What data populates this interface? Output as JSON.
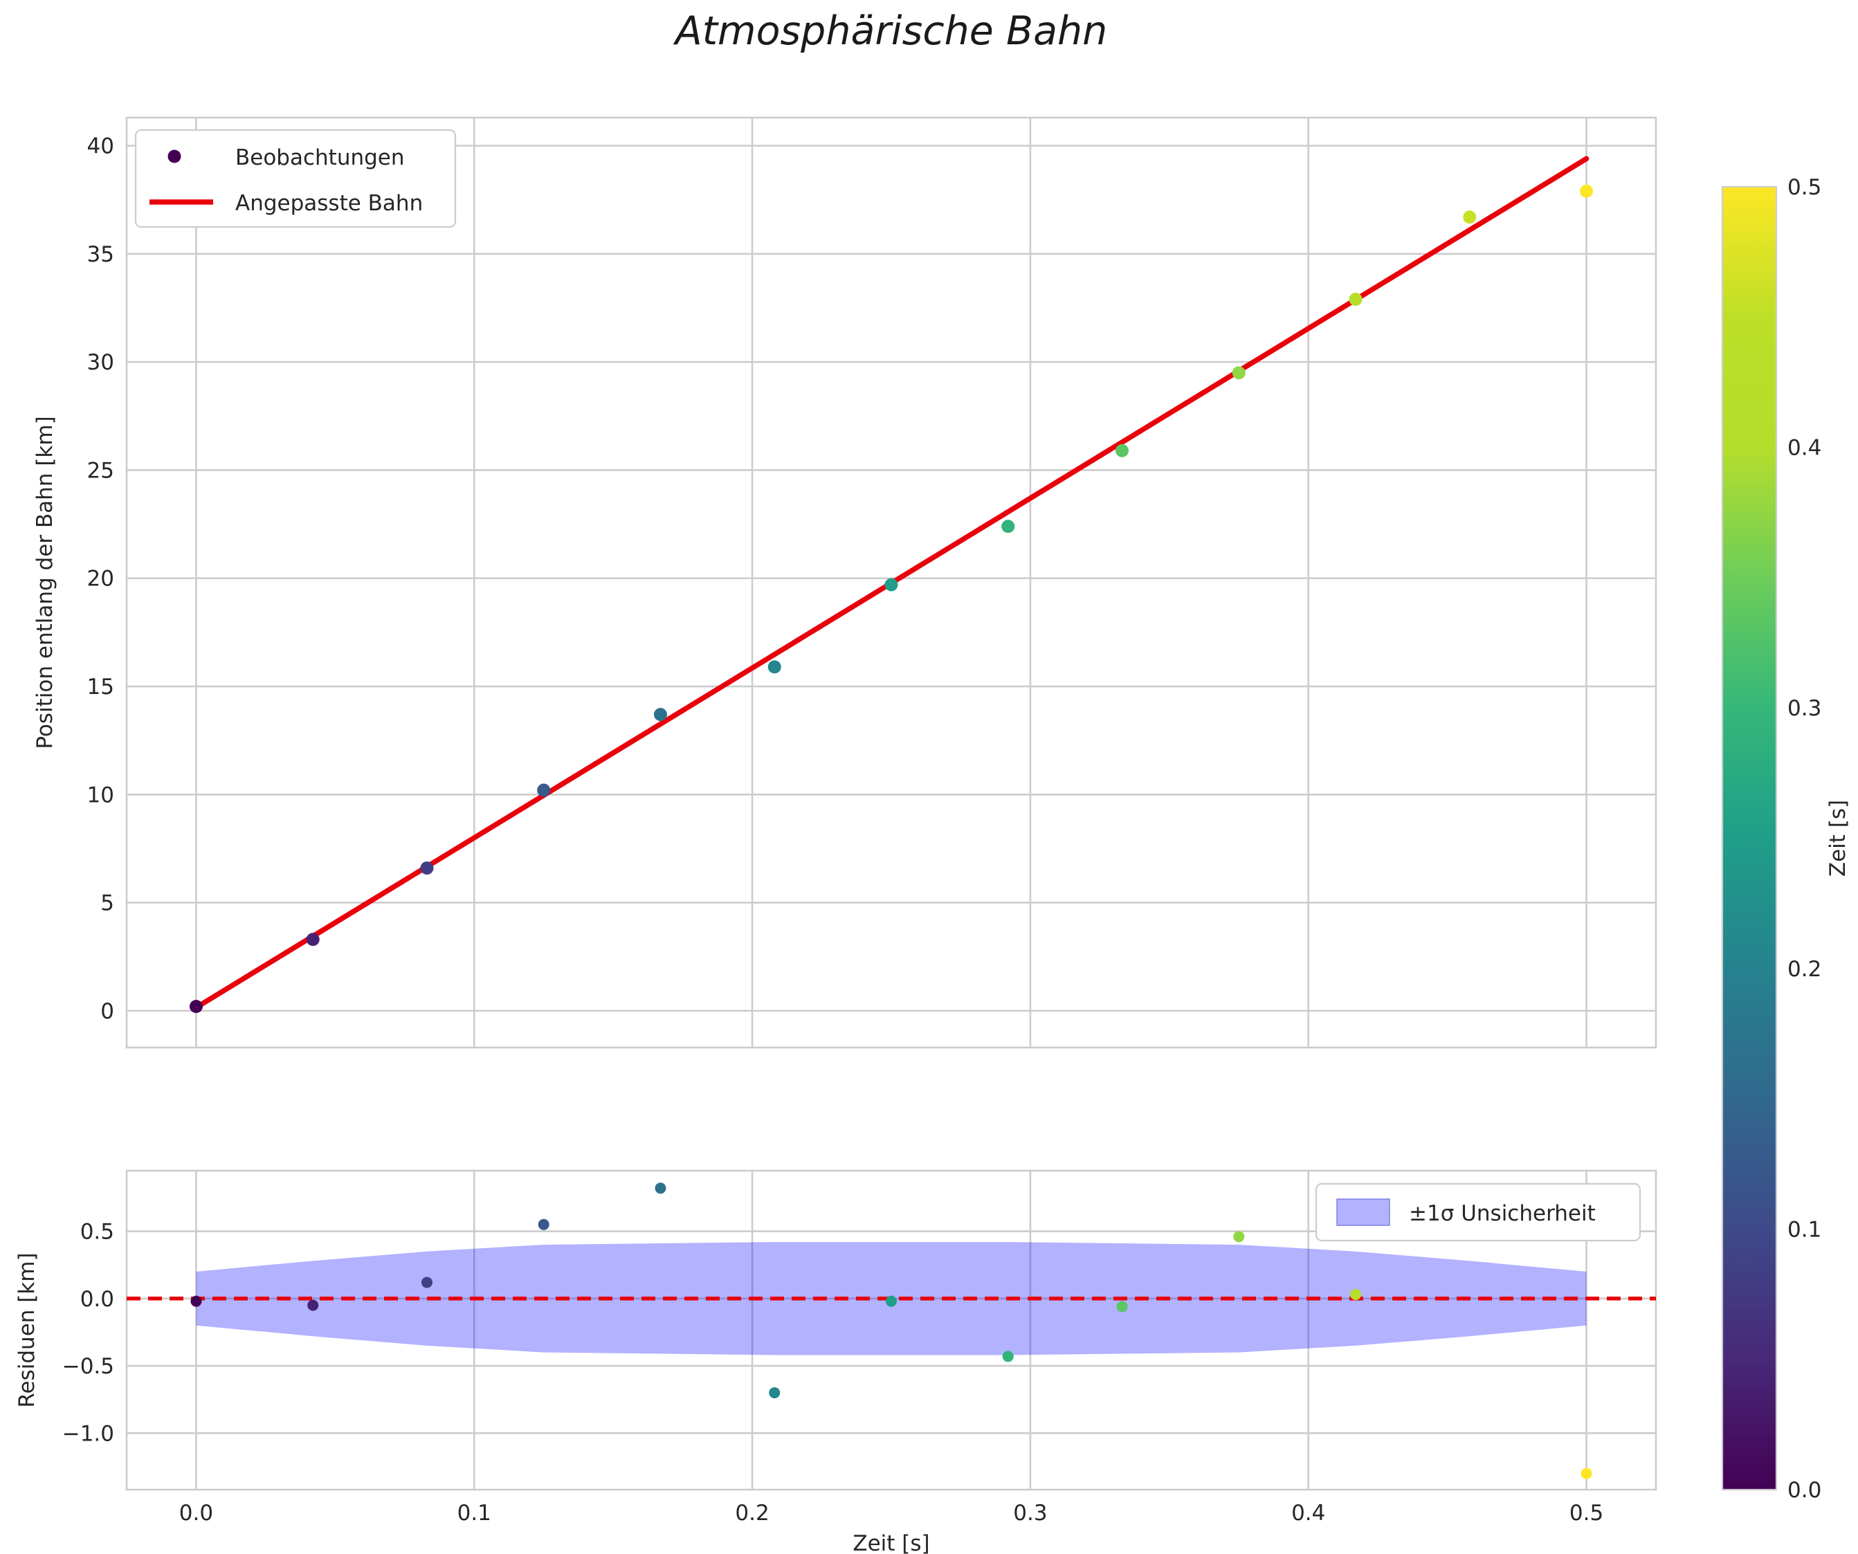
{
  "title": "Atmosphärische Bahn",
  "style": {
    "fit_color": "#e8000b",
    "band_fill": "rgba(0,0,255,0.3)",
    "band_edge": "#7f7fe6",
    "grid_color": "#cccccc",
    "spine_color": "#cccccc",
    "text_color": "#262626",
    "legend_border": "#cccccc",
    "background": "#ffffff"
  },
  "chart_data": [
    {
      "name": "trajectory",
      "type": "scatter",
      "title": "Atmosphärische Bahn",
      "xlabel": "",
      "ylabel": "Position entlang der Bahn [km]",
      "xlim": [
        -0.025,
        0.525
      ],
      "ylim": [
        -1.7,
        41.3
      ],
      "xticks": [
        0.0,
        0.1,
        0.2,
        0.3,
        0.4,
        0.5
      ],
      "yticks": [
        0,
        5,
        10,
        15,
        20,
        25,
        30,
        35,
        40
      ],
      "ytick_labels": [
        "0",
        "5",
        "10",
        "15",
        "20",
        "25",
        "30",
        "35",
        "40"
      ],
      "grid": true,
      "x": [
        0.0,
        0.042,
        0.083,
        0.125,
        0.167,
        0.208,
        0.25,
        0.292,
        0.333,
        0.375,
        0.417,
        0.458,
        0.5
      ],
      "y": [
        0.2,
        3.3,
        6.6,
        10.2,
        13.7,
        15.9,
        19.7,
        22.4,
        25.9,
        29.5,
        32.9,
        36.7,
        37.9
      ],
      "color_by": "time",
      "fit_line": {
        "x0": 0.0,
        "y0": 0.15,
        "x1": 0.5,
        "y1": 39.4,
        "label": "Angepasste Bahn"
      },
      "legend_position": "upper-left",
      "legend": [
        {
          "marker": "point",
          "label": "Beobachtungen"
        },
        {
          "marker": "line",
          "label": "Angepasste Bahn"
        }
      ]
    },
    {
      "name": "residuals",
      "type": "scatter",
      "xlabel": "Zeit [s]",
      "ylabel": "Residuen [km]",
      "xlim": [
        -0.025,
        0.525
      ],
      "ylim": [
        -1.42,
        0.95
      ],
      "xticks": [
        0.0,
        0.1,
        0.2,
        0.3,
        0.4,
        0.5
      ],
      "xtick_labels": [
        "0.0",
        "0.1",
        "0.2",
        "0.3",
        "0.4",
        "0.5"
      ],
      "yticks": [
        -1.0,
        -0.5,
        0.0,
        0.5
      ],
      "ytick_labels": [
        "−1.0",
        "−0.5",
        "0.0",
        "0.5"
      ],
      "grid": true,
      "x": [
        0.0,
        0.042,
        0.083,
        0.125,
        0.167,
        0.208,
        0.25,
        0.292,
        0.333,
        0.375,
        0.417,
        0.458,
        0.5
      ],
      "y": [
        -0.02,
        -0.05,
        0.12,
        0.55,
        0.82,
        -0.7,
        -0.02,
        -0.43,
        -0.06,
        0.46,
        0.03,
        0.52,
        -1.3
      ],
      "zero_line": 0.0,
      "band": {
        "label": "±1σ Unsicherheit",
        "sigma": [
          0.2,
          0.28,
          0.35,
          0.4,
          0.41,
          0.42,
          0.42,
          0.42,
          0.41,
          0.4,
          0.35,
          0.28,
          0.2
        ]
      },
      "legend_position": "upper-right"
    }
  ],
  "colorbar": {
    "label": "Zeit [s]",
    "colormap": "viridis",
    "vmin": 0.0,
    "vmax": 0.5,
    "ticks": [
      0.0,
      0.1,
      0.2,
      0.3,
      0.4,
      0.5
    ],
    "tick_labels": [
      "0.0",
      "0.1",
      "0.2",
      "0.3",
      "0.4",
      "0.5"
    ]
  }
}
